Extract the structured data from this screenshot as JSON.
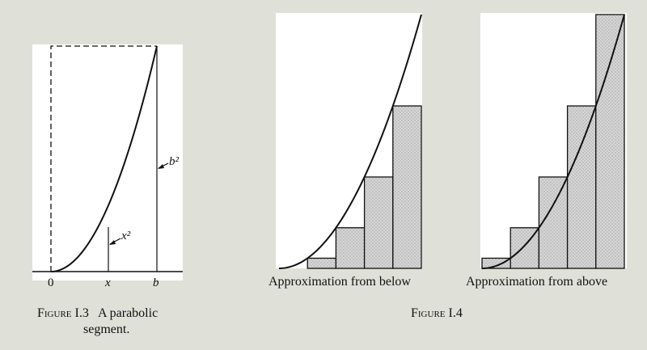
{
  "figure_i3": {
    "label_zero": "0",
    "label_x": "x",
    "label_b": "b",
    "label_x_squared": "x²",
    "label_b_squared": "b²",
    "caption_line1_prefix": "Figure I.3",
    "caption_line1_rest": "A parabolic",
    "caption_line2": "segment."
  },
  "figure_i4": {
    "caption_below": "Approximation from below",
    "caption_above": "Approximation from above",
    "figure_label": "Figure I.4",
    "rectangles_count": 5
  },
  "colors": {
    "background": "#dfe0d8",
    "panel": "#ffffff",
    "ink": "#111111",
    "shading": "#d4d4d4"
  }
}
